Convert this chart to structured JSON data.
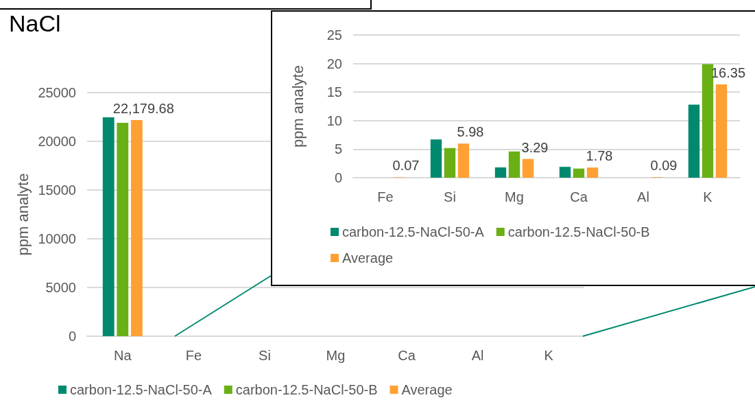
{
  "chart_data": [
    {
      "type": "bar",
      "title": "NaCl",
      "ylabel": "ppm analyte",
      "categories": [
        "Na",
        "Fe",
        "Si",
        "Mg",
        "Ca",
        "Al",
        "K"
      ],
      "series": [
        {
          "name": "carbon-12.5-NaCl-50-A",
          "color": "#00896f",
          "values": [
            22460,
            0,
            0,
            0,
            0,
            0,
            0
          ]
        },
        {
          "name": "carbon-12.5-NaCl-50-B",
          "color": "#6ab015",
          "values": [
            21900,
            0,
            0,
            0,
            0,
            0,
            0
          ]
        },
        {
          "name": "Average",
          "color": "#ffa033",
          "values": [
            22179.68,
            0,
            0,
            0,
            0,
            0,
            0
          ],
          "value_labels": [
            "22,179.68",
            null,
            null,
            null,
            null,
            null,
            null
          ]
        }
      ],
      "ylim": [
        0,
        25000
      ],
      "yticks": [
        0,
        5000,
        10000,
        15000,
        20000,
        25000
      ],
      "grid": "y",
      "legend": "bottom"
    },
    {
      "type": "bar",
      "ylabel": "ppm analyte",
      "categories": [
        "Fe",
        "Si",
        "Mg",
        "Ca",
        "Al",
        "K"
      ],
      "series": [
        {
          "name": "carbon-12.5-NaCl-50-A",
          "color": "#00896f",
          "values": [
            0,
            6.7,
            1.8,
            1.9,
            0,
            12.8
          ]
        },
        {
          "name": "carbon-12.5-NaCl-50-B",
          "color": "#6ab015",
          "values": [
            0,
            5.2,
            4.6,
            1.6,
            0,
            19.9
          ]
        },
        {
          "name": "Average",
          "color": "#ffa033",
          "values": [
            0.07,
            5.98,
            3.29,
            1.78,
            0.09,
            16.35
          ],
          "value_labels": [
            "0.07",
            "5.98",
            "3.29",
            "1.78",
            "0.09",
            "16.35"
          ]
        }
      ],
      "ylim": [
        0,
        25
      ],
      "yticks": [
        0,
        5,
        10,
        15,
        20,
        25
      ],
      "grid": "y",
      "legend": "bottom"
    }
  ]
}
